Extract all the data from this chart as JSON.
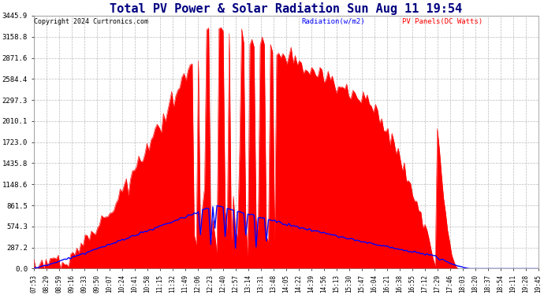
{
  "title": "Total PV Power & Solar Radiation Sun Aug 11 19:54",
  "copyright": "Copyright 2024 Curtronics.com",
  "legend_radiation": "Radiation(w/m2)",
  "legend_pv": "PV Panels(DC Watts)",
  "yticks": [
    0.0,
    287.2,
    574.3,
    861.5,
    1148.6,
    1435.8,
    1723.0,
    2010.1,
    2297.3,
    2584.4,
    2871.6,
    3158.8,
    3445.9
  ],
  "ymax": 3445.9,
  "background_color": "#ffffff",
  "plot_bg_color": "#ffffff",
  "grid_color": "#aaaaaa",
  "pv_fill_color": "#ff0000",
  "radiation_line_color": "#0000ff",
  "title_color": "#000080",
  "title_fontsize": 11,
  "time_labels": [
    "07:53",
    "08:29",
    "08:59",
    "09:16",
    "09:33",
    "09:50",
    "10:07",
    "10:24",
    "10:41",
    "10:58",
    "11:15",
    "11:32",
    "11:49",
    "12:06",
    "12:23",
    "12:40",
    "12:57",
    "13:14",
    "13:31",
    "13:48",
    "14:05",
    "14:22",
    "14:39",
    "14:56",
    "15:13",
    "15:30",
    "15:47",
    "16:04",
    "16:21",
    "16:38",
    "16:55",
    "17:12",
    "17:29",
    "17:46",
    "18:03",
    "18:20",
    "18:37",
    "18:54",
    "19:11",
    "19:28",
    "19:45"
  ]
}
